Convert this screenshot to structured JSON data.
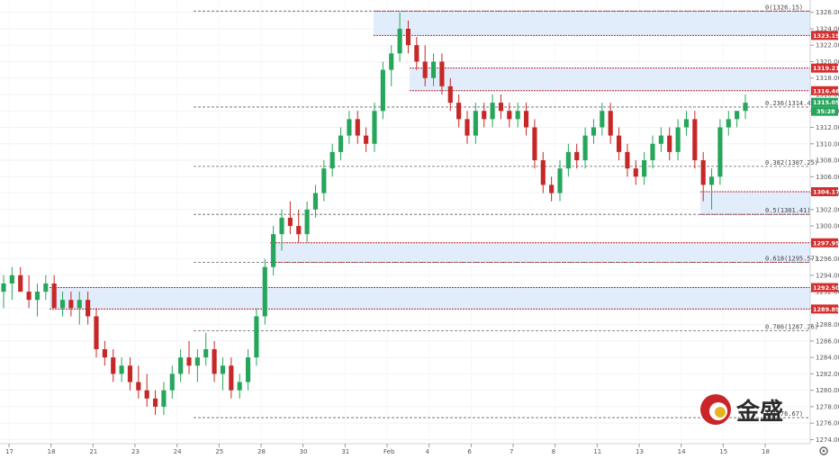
{
  "chart_data": {
    "type": "candlestick",
    "instrument": "XAUUSD",
    "y_range": [
      1273.5,
      1327.5
    ],
    "y_ticks": [
      1274,
      1276,
      1278,
      1280,
      1282,
      1284,
      1286,
      1288,
      1290,
      1292,
      1294,
      1296,
      1298,
      1300,
      1302,
      1304,
      1306,
      1308,
      1310,
      1312,
      1314,
      1316,
      1318,
      1320,
      1322,
      1324,
      1326
    ],
    "x_labels": [
      "17",
      "18",
      "21",
      "23",
      "24",
      "25",
      "28",
      "30",
      "31",
      "Feb",
      "4",
      "6",
      "7",
      "8",
      "11",
      "13",
      "14",
      "15",
      "18"
    ],
    "fib_levels": [
      {
        "label": "0(1326.15)",
        "value": 1326.15
      },
      {
        "label": "0.236(1314.47)",
        "value": 1314.47
      },
      {
        "label": "0.382(1307.25)",
        "value": 1307.25
      },
      {
        "label": "0.5(1301.41)",
        "value": 1301.41
      },
      {
        "label": "0.618(1295.57)",
        "value": 1295.57
      },
      {
        "label": "0.786(1287.26)",
        "value": 1287.26
      },
      {
        "label": "1(1276.67)",
        "value": 1276.67
      }
    ],
    "zones": [
      {
        "top": 1326.15,
        "bottom": 1323.19
      },
      {
        "top": 1319.21,
        "bottom": 1316.46
      },
      {
        "top": 1304.17,
        "bottom": 1301.41
      },
      {
        "top": 1297.95,
        "bottom": 1295.57
      },
      {
        "top": 1292.5,
        "bottom": 1289.89
      }
    ],
    "price_tags": [
      "1323.19",
      "1319.21",
      "1316.46",
      "1304.17",
      "1297.95",
      "1292.50",
      "1289.89"
    ],
    "current_price": "1315.05",
    "countdown": "35:28",
    "candles": [
      [
        1292,
        1294,
        1290,
        1293
      ],
      [
        1293,
        1295,
        1291,
        1294
      ],
      [
        1294,
        1295,
        1292,
        1292
      ],
      [
        1292,
        1294,
        1290,
        1291
      ],
      [
        1291,
        1293,
        1289,
        1292
      ],
      [
        1292,
        1294,
        1291,
        1293
      ],
      [
        1293,
        1294,
        1290,
        1290
      ],
      [
        1290,
        1292,
        1289,
        1291
      ],
      [
        1291,
        1292,
        1289,
        1290
      ],
      [
        1290,
        1292,
        1288,
        1291
      ],
      [
        1291,
        1292,
        1288,
        1289
      ],
      [
        1289,
        1290,
        1284,
        1285
      ],
      [
        1285,
        1286,
        1283,
        1284
      ],
      [
        1284,
        1285,
        1281,
        1282
      ],
      [
        1282,
        1284,
        1281,
        1283
      ],
      [
        1283,
        1284,
        1280,
        1281
      ],
      [
        1281,
        1283,
        1279,
        1280
      ],
      [
        1280,
        1282,
        1278,
        1279
      ],
      [
        1279,
        1280,
        1277,
        1278
      ],
      [
        1278,
        1281,
        1277,
        1280
      ],
      [
        1280,
        1283,
        1279,
        1282
      ],
      [
        1282,
        1285,
        1281,
        1284
      ],
      [
        1284,
        1286,
        1282,
        1283
      ],
      [
        1283,
        1285,
        1281,
        1284
      ],
      [
        1284,
        1287,
        1283,
        1285
      ],
      [
        1285,
        1286,
        1281,
        1282
      ],
      [
        1282,
        1284,
        1280,
        1283
      ],
      [
        1283,
        1284,
        1279,
        1280
      ],
      [
        1280,
        1282,
        1279,
        1281
      ],
      [
        1281,
        1285,
        1280,
        1284
      ],
      [
        1284,
        1290,
        1283,
        1289
      ],
      [
        1289,
        1296,
        1288,
        1295
      ],
      [
        1295,
        1300,
        1294,
        1299
      ],
      [
        1299,
        1302,
        1297,
        1301
      ],
      [
        1301,
        1303,
        1299,
        1300
      ],
      [
        1300,
        1302,
        1298,
        1299
      ],
      [
        1299,
        1303,
        1298,
        1302
      ],
      [
        1302,
        1305,
        1301,
        1304
      ],
      [
        1304,
        1308,
        1303,
        1307
      ],
      [
        1307,
        1310,
        1306,
        1309
      ],
      [
        1309,
        1312,
        1308,
        1311
      ],
      [
        1311,
        1314,
        1310,
        1313
      ],
      [
        1313,
        1314,
        1310,
        1311
      ],
      [
        1311,
        1312,
        1309,
        1310
      ],
      [
        1310,
        1315,
        1309,
        1314
      ],
      [
        1314,
        1320,
        1313,
        1319
      ],
      [
        1319,
        1322,
        1317,
        1321
      ],
      [
        1321,
        1326,
        1320,
        1324
      ],
      [
        1324,
        1325,
        1321,
        1322
      ],
      [
        1322,
        1323,
        1319,
        1320
      ],
      [
        1320,
        1322,
        1317,
        1318
      ],
      [
        1318,
        1321,
        1317,
        1320
      ],
      [
        1320,
        1321,
        1316,
        1317
      ],
      [
        1317,
        1318,
        1314,
        1315
      ],
      [
        1315,
        1316,
        1312,
        1313
      ],
      [
        1313,
        1314,
        1310,
        1311
      ],
      [
        1311,
        1315,
        1310,
        1314
      ],
      [
        1314,
        1315,
        1312,
        1313
      ],
      [
        1313,
        1316,
        1312,
        1315
      ],
      [
        1315,
        1316,
        1313,
        1314
      ],
      [
        1314,
        1315,
        1312,
        1313
      ],
      [
        1313,
        1315,
        1312,
        1314
      ],
      [
        1314,
        1315,
        1311,
        1312
      ],
      [
        1312,
        1313,
        1307,
        1308
      ],
      [
        1308,
        1309,
        1304,
        1305
      ],
      [
        1305,
        1306,
        1303,
        1304
      ],
      [
        1304,
        1308,
        1303,
        1307
      ],
      [
        1307,
        1310,
        1306,
        1309
      ],
      [
        1309,
        1310,
        1307,
        1308
      ],
      [
        1308,
        1312,
        1307,
        1311
      ],
      [
        1311,
        1313,
        1310,
        1312
      ],
      [
        1312,
        1315,
        1311,
        1314
      ],
      [
        1314,
        1315,
        1310,
        1311
      ],
      [
        1311,
        1312,
        1308,
        1309
      ],
      [
        1309,
        1310,
        1306,
        1307
      ],
      [
        1307,
        1308,
        1305,
        1306
      ],
      [
        1306,
        1309,
        1305,
        1308
      ],
      [
        1308,
        1311,
        1307,
        1310
      ],
      [
        1310,
        1312,
        1309,
        1311
      ],
      [
        1311,
        1312,
        1308,
        1309
      ],
      [
        1309,
        1313,
        1308,
        1312
      ],
      [
        1312,
        1314,
        1311,
        1313
      ],
      [
        1313,
        1314,
        1307,
        1308
      ],
      [
        1308,
        1309,
        1303,
        1305
      ],
      [
        1305,
        1307,
        1302,
        1306
      ],
      [
        1306,
        1313,
        1305,
        1312
      ],
      [
        1312,
        1314,
        1311,
        1313
      ],
      [
        1313,
        1314,
        1312,
        1314
      ],
      [
        1314,
        1316,
        1313,
        1315
      ]
    ]
  },
  "logo": {
    "text": "金盛"
  },
  "settings_icon": "gear-icon"
}
